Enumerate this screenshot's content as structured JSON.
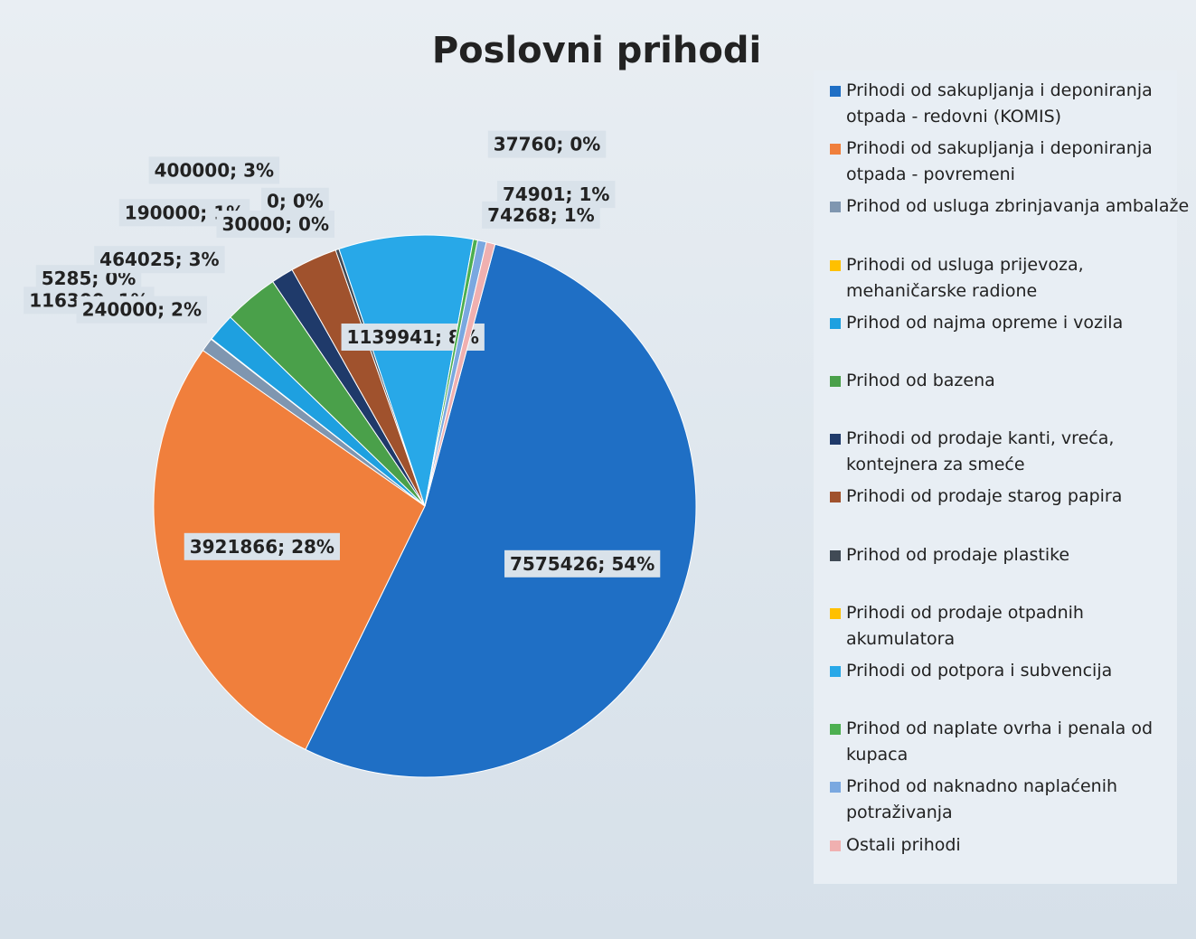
{
  "chart_data": {
    "type": "pie",
    "title": "Poslovni prihodi",
    "categories": [
      "Prihodi od sakupljanja i deponiranja otpada - redovni (KOMIS)",
      "Prihodi od sakupljanja i deponiranja otpada - povremeni",
      "Prihod od usluga zbrinjavanja ambalaže",
      "Prihodi od usluga prijevoza, mehaničarske radione",
      "Prihod od najma opreme i vozila",
      "Prihod od bazena",
      "Prihodi od prodaje kanti, vreća, kontejnera za smeće",
      "Prihodi od prodaje starog papira",
      "Prihod od prodaje plastike",
      "Prihodi od prodaje otpadnih akumulatora",
      "Prihodi od potpora i subvencija",
      "Prihod od naplate ovrha i penala od kupaca",
      "Prihod od naknadno naplaćenih potraživanja",
      "Ostali prihodi"
    ],
    "values": [
      7575426,
      3921866,
      116300,
      5285,
      240000,
      464025,
      190000,
      400000,
      30000,
      0,
      1139941,
      37760,
      74268,
      74901
    ],
    "value_labels": [
      "7575426; 54%",
      "3921866; 28%",
      "116300; 1%",
      "5285; 0%",
      "240000; 2%",
      "464025; 3%",
      "190000; 1%",
      "400000; 3%",
      "30000; 0%",
      "0; 0%",
      "1139941; 8%",
      "37760; 0%",
      "74268; 1%",
      "74901; 1%"
    ],
    "colors": [
      "#1f6fc5",
      "#f07f3c",
      "#7f96b0",
      "#ffc000",
      "#1ea0e0",
      "#4aa04a",
      "#1f3a6a",
      "#a0522d",
      "#404a55",
      "#ffc000",
      "#28a8e8",
      "#4caf50",
      "#7aa8e0",
      "#f0b0b0"
    ],
    "legend": "right"
  }
}
